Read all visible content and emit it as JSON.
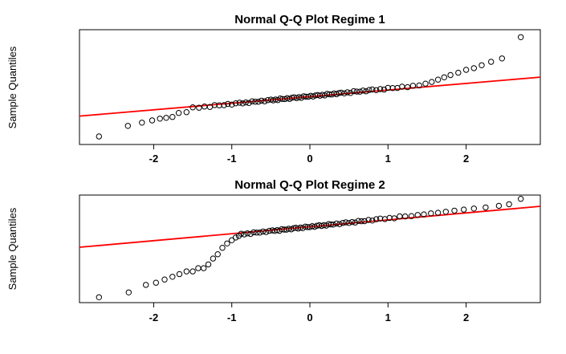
{
  "page": {
    "background": "#ffffff"
  },
  "chart_data": [
    {
      "type": "scatter",
      "title": "Normal Q-Q Plot Regime 1",
      "xlabel": "",
      "ylabel": "Sample Quantiles",
      "xlim": [
        -2.95,
        2.95
      ],
      "ylim": [
        -1,
        1
      ],
      "x_ticks": [
        -2,
        -1,
        0,
        1,
        2
      ],
      "grid": false,
      "legend": false,
      "point_style": {
        "shape": "open-circle",
        "color": "#000000"
      },
      "reference_line": {
        "slope": 0.115,
        "intercept": -0.166,
        "color": "#FF0000"
      },
      "points": [
        [
          -2.7,
          -0.86
        ],
        [
          -2.33,
          -0.676
        ],
        [
          -2.15,
          -0.62
        ],
        [
          -2.02,
          -0.58
        ],
        [
          -1.92,
          -0.55
        ],
        [
          -1.84,
          -0.535
        ],
        [
          -1.76,
          -0.52
        ],
        [
          -1.68,
          -0.45
        ],
        [
          -1.58,
          -0.437
        ],
        [
          -1.5,
          -0.353
        ],
        [
          -1.42,
          -0.36
        ],
        [
          -1.35,
          -0.338
        ],
        [
          -1.28,
          -0.345
        ],
        [
          -1.22,
          -0.313
        ],
        [
          -1.16,
          -0.317
        ],
        [
          -1.1,
          -0.315
        ],
        [
          -1.05,
          -0.294
        ],
        [
          -1.0,
          -0.305
        ],
        [
          -0.95,
          -0.282
        ],
        [
          -0.9,
          -0.272
        ],
        [
          -0.86,
          -0.284
        ],
        [
          -0.82,
          -0.267
        ],
        [
          -0.78,
          -0.277
        ],
        [
          -0.74,
          -0.248
        ],
        [
          -0.7,
          -0.254
        ],
        [
          -0.66,
          -0.255
        ],
        [
          -0.62,
          -0.236
        ],
        [
          -0.58,
          -0.248
        ],
        [
          -0.54,
          -0.227
        ],
        [
          -0.5,
          -0.218
        ],
        [
          -0.47,
          -0.231
        ],
        [
          -0.44,
          -0.215
        ],
        [
          -0.41,
          -0.227
        ],
        [
          -0.38,
          -0.199
        ],
        [
          -0.35,
          -0.207
        ],
        [
          -0.32,
          -0.209
        ],
        [
          -0.29,
          -0.191
        ],
        [
          -0.26,
          -0.205
        ],
        [
          -0.23,
          -0.185
        ],
        [
          -0.2,
          -0.177
        ],
        [
          -0.17,
          -0.191
        ],
        [
          -0.14,
          -0.175
        ],
        [
          -0.11,
          -0.187
        ],
        [
          -0.08,
          -0.159
        ],
        [
          -0.05,
          -0.167
        ],
        [
          -0.02,
          -0.169
        ],
        [
          0.01,
          -0.151
        ],
        [
          0.04,
          -0.165
        ],
        [
          0.07,
          -0.145
        ],
        [
          0.1,
          -0.137
        ],
        [
          0.13,
          -0.15
        ],
        [
          0.16,
          -0.134
        ],
        [
          0.19,
          -0.146
        ],
        [
          0.22,
          -0.118
        ],
        [
          0.25,
          -0.126
        ],
        [
          0.28,
          -0.128
        ],
        [
          0.31,
          -0.11
        ],
        [
          0.34,
          -0.124
        ],
        [
          0.37,
          -0.104
        ],
        [
          0.4,
          -0.096
        ],
        [
          0.44,
          -0.109
        ],
        [
          0.48,
          -0.091
        ],
        [
          0.52,
          -0.102
        ],
        [
          0.56,
          -0.072
        ],
        [
          0.6,
          -0.079
        ],
        [
          0.64,
          -0.08
        ],
        [
          0.68,
          -0.06
        ],
        [
          0.72,
          -0.073
        ],
        [
          0.76,
          -0.051
        ],
        [
          0.8,
          -0.042
        ],
        [
          0.85,
          -0.053
        ],
        [
          0.9,
          -0.035
        ],
        [
          0.95,
          -0.044
        ],
        [
          1.0,
          -0.013
        ],
        [
          1.06,
          -0.017
        ],
        [
          1.12,
          -0.015
        ],
        [
          1.18,
          0.007
        ],
        [
          1.25,
          -0.001
        ],
        [
          1.32,
          0.024
        ],
        [
          1.4,
          0.03
        ],
        [
          1.48,
          0.06
        ],
        [
          1.56,
          0.09
        ],
        [
          1.64,
          0.13
        ],
        [
          1.72,
          0.17
        ],
        [
          1.8,
          0.21
        ],
        [
          1.9,
          0.25
        ],
        [
          2.0,
          0.3
        ],
        [
          2.1,
          0.33
        ],
        [
          2.2,
          0.38
        ],
        [
          2.32,
          0.44
        ],
        [
          2.46,
          0.5
        ],
        [
          2.7,
          0.87
        ]
      ]
    },
    {
      "type": "scatter",
      "title": "Normal Q-Q Plot Regime 2",
      "xlabel": "",
      "ylabel": "Sample Quantiles",
      "xlim": [
        -2.95,
        2.95
      ],
      "ylim": [
        -1,
        1
      ],
      "x_ticks": [
        -2,
        -1,
        0,
        1,
        2
      ],
      "grid": false,
      "legend": false,
      "point_style": {
        "shape": "open-circle",
        "color": "#000000"
      },
      "reference_line": {
        "slope": 0.129,
        "intercept": 0.41,
        "color": "#FF0000"
      },
      "points": [
        [
          -2.7,
          -0.9
        ],
        [
          -2.32,
          -0.81
        ],
        [
          -2.1,
          -0.67
        ],
        [
          -1.97,
          -0.63
        ],
        [
          -1.86,
          -0.57
        ],
        [
          -1.76,
          -0.52
        ],
        [
          -1.67,
          -0.47
        ],
        [
          -1.58,
          -0.42
        ],
        [
          -1.5,
          -0.42
        ],
        [
          -1.43,
          -0.36
        ],
        [
          -1.36,
          -0.36
        ],
        [
          -1.3,
          -0.29
        ],
        [
          -1.24,
          -0.18
        ],
        [
          -1.18,
          -0.1
        ],
        [
          -1.12,
          0.02
        ],
        [
          -1.06,
          0.1
        ],
        [
          -1.0,
          0.16
        ],
        [
          -0.95,
          0.21
        ],
        [
          -0.91,
          0.24
        ],
        [
          -0.88,
          0.281
        ],
        [
          -0.84,
          0.269
        ],
        [
          -0.8,
          0.288
        ],
        [
          -0.76,
          0.278
        ],
        [
          -0.72,
          0.308
        ],
        [
          -0.68,
          0.303
        ],
        [
          -0.64,
          0.303
        ],
        [
          -0.6,
          0.323
        ],
        [
          -0.56,
          0.312
        ],
        [
          -0.52,
          0.334
        ],
        [
          -0.48,
          0.344
        ],
        [
          -0.45,
          0.331
        ],
        [
          -0.42,
          0.348
        ],
        [
          -0.39,
          0.336
        ],
        [
          -0.36,
          0.365
        ],
        [
          -0.33,
          0.358
        ],
        [
          -0.3,
          0.357
        ],
        [
          -0.27,
          0.375
        ],
        [
          -0.24,
          0.362
        ],
        [
          -0.21,
          0.383
        ],
        [
          -0.18,
          0.392
        ],
        [
          -0.15,
          0.378
        ],
        [
          -0.12,
          0.395
        ],
        [
          -0.09,
          0.384
        ],
        [
          -0.06,
          0.413
        ],
        [
          -0.03,
          0.405
        ],
        [
          0.0,
          0.404
        ],
        [
          0.03,
          0.423
        ],
        [
          0.06,
          0.409
        ],
        [
          0.09,
          0.43
        ],
        [
          0.12,
          0.439
        ],
        [
          0.15,
          0.426
        ],
        [
          0.18,
          0.442
        ],
        [
          0.21,
          0.431
        ],
        [
          0.24,
          0.46
        ],
        [
          0.27,
          0.453
        ],
        [
          0.3,
          0.451
        ],
        [
          0.34,
          0.472
        ],
        [
          0.38,
          0.46
        ],
        [
          0.42,
          0.482
        ],
        [
          0.46,
          0.493
        ],
        [
          0.5,
          0.481
        ],
        [
          0.54,
          0.499
        ],
        [
          0.58,
          0.49
        ],
        [
          0.62,
          0.52
        ],
        [
          0.66,
          0.514
        ],
        [
          0.7,
          0.515
        ],
        [
          0.75,
          0.537
        ],
        [
          0.8,
          0.526
        ],
        [
          0.85,
          0.55
        ],
        [
          0.9,
          0.562
        ],
        [
          0.96,
          0.554
        ],
        [
          1.02,
          0.575
        ],
        [
          1.08,
          0.569
        ],
        [
          1.15,
          0.604
        ],
        [
          1.22,
          0.603
        ],
        [
          1.3,
          0.609
        ],
        [
          1.38,
          0.63
        ],
        [
          1.46,
          0.64
        ],
        [
          1.55,
          0.66
        ],
        [
          1.64,
          0.67
        ],
        [
          1.74,
          0.69
        ],
        [
          1.85,
          0.71
        ],
        [
          1.97,
          0.73
        ],
        [
          2.1,
          0.75
        ],
        [
          2.25,
          0.77
        ],
        [
          2.42,
          0.8
        ],
        [
          2.55,
          0.83
        ],
        [
          2.7,
          0.93
        ]
      ]
    }
  ]
}
